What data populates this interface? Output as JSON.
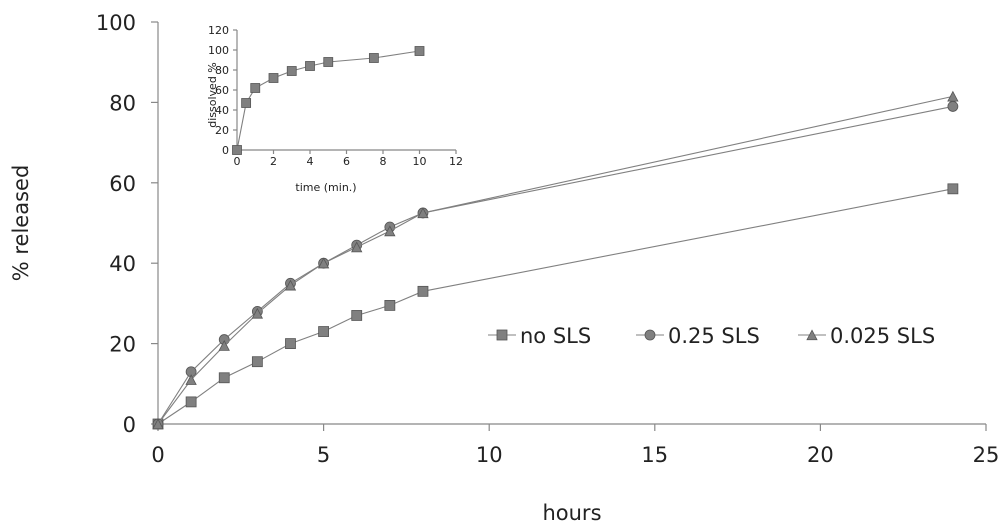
{
  "chart_data": [
    {
      "type": "line",
      "xlabel": "hours",
      "ylabel": "% released",
      "xlim": [
        0,
        25
      ],
      "ylim": [
        0,
        100
      ],
      "x_ticks": [
        0,
        5,
        10,
        15,
        20,
        25
      ],
      "y_ticks": [
        0,
        20,
        40,
        60,
        80,
        100
      ],
      "grid": false,
      "legend": "bottom-right",
      "series": [
        {
          "name": "no SLS",
          "marker": "square",
          "color": "#808080",
          "x": [
            0,
            1,
            2,
            3,
            4,
            5,
            6,
            7,
            8,
            24
          ],
          "y": [
            0,
            5.5,
            11.5,
            15.5,
            20,
            23,
            27,
            29.5,
            33,
            58.5
          ]
        },
        {
          "name": "0.25 SLS",
          "marker": "circle",
          "color": "#808080",
          "x": [
            0,
            1,
            2,
            3,
            4,
            5,
            6,
            7,
            8,
            24
          ],
          "y": [
            0,
            13,
            21,
            28,
            35,
            40,
            44.5,
            49,
            52.5,
            79
          ]
        },
        {
          "name": "0.025 SLS",
          "marker": "triangle",
          "color": "#808080",
          "x": [
            0,
            1,
            2,
            3,
            4,
            5,
            6,
            7,
            8,
            24
          ],
          "y": [
            0,
            11,
            19.5,
            27.5,
            34.5,
            40,
            44,
            48,
            52.5,
            81.5
          ]
        }
      ]
    },
    {
      "type": "line",
      "xlabel": "time (min.)",
      "ylabel": "dissolved %",
      "xlim": [
        0,
        12
      ],
      "ylim": [
        0,
        120
      ],
      "x_ticks": [
        0,
        2,
        4,
        6,
        8,
        10,
        12
      ],
      "y_ticks": [
        0,
        20,
        40,
        60,
        80,
        100,
        120
      ],
      "grid": false,
      "series": [
        {
          "marker": "square",
          "color": "#808080",
          "x": [
            0,
            0.5,
            1,
            2,
            3,
            4,
            5,
            7.5,
            10
          ],
          "y": [
            0,
            47,
            62,
            72,
            79,
            84,
            88,
            92,
            99
          ]
        }
      ]
    }
  ]
}
